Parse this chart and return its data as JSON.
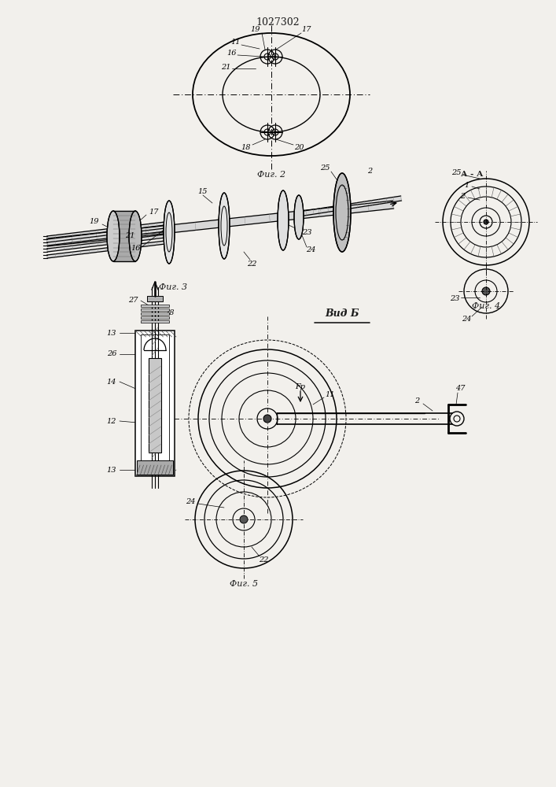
{
  "title": "1027302",
  "background_color": "#f2f0ec",
  "line_color": "#1a1a1a",
  "fig2_caption": "Фиг. 2",
  "fig3_caption": "Фиг. 3",
  "fig4_caption": "Фиг. 4",
  "fig5_caption": "Фиг. 5",
  "vida_caption": "Вид Б",
  "aa_caption": "А - А"
}
